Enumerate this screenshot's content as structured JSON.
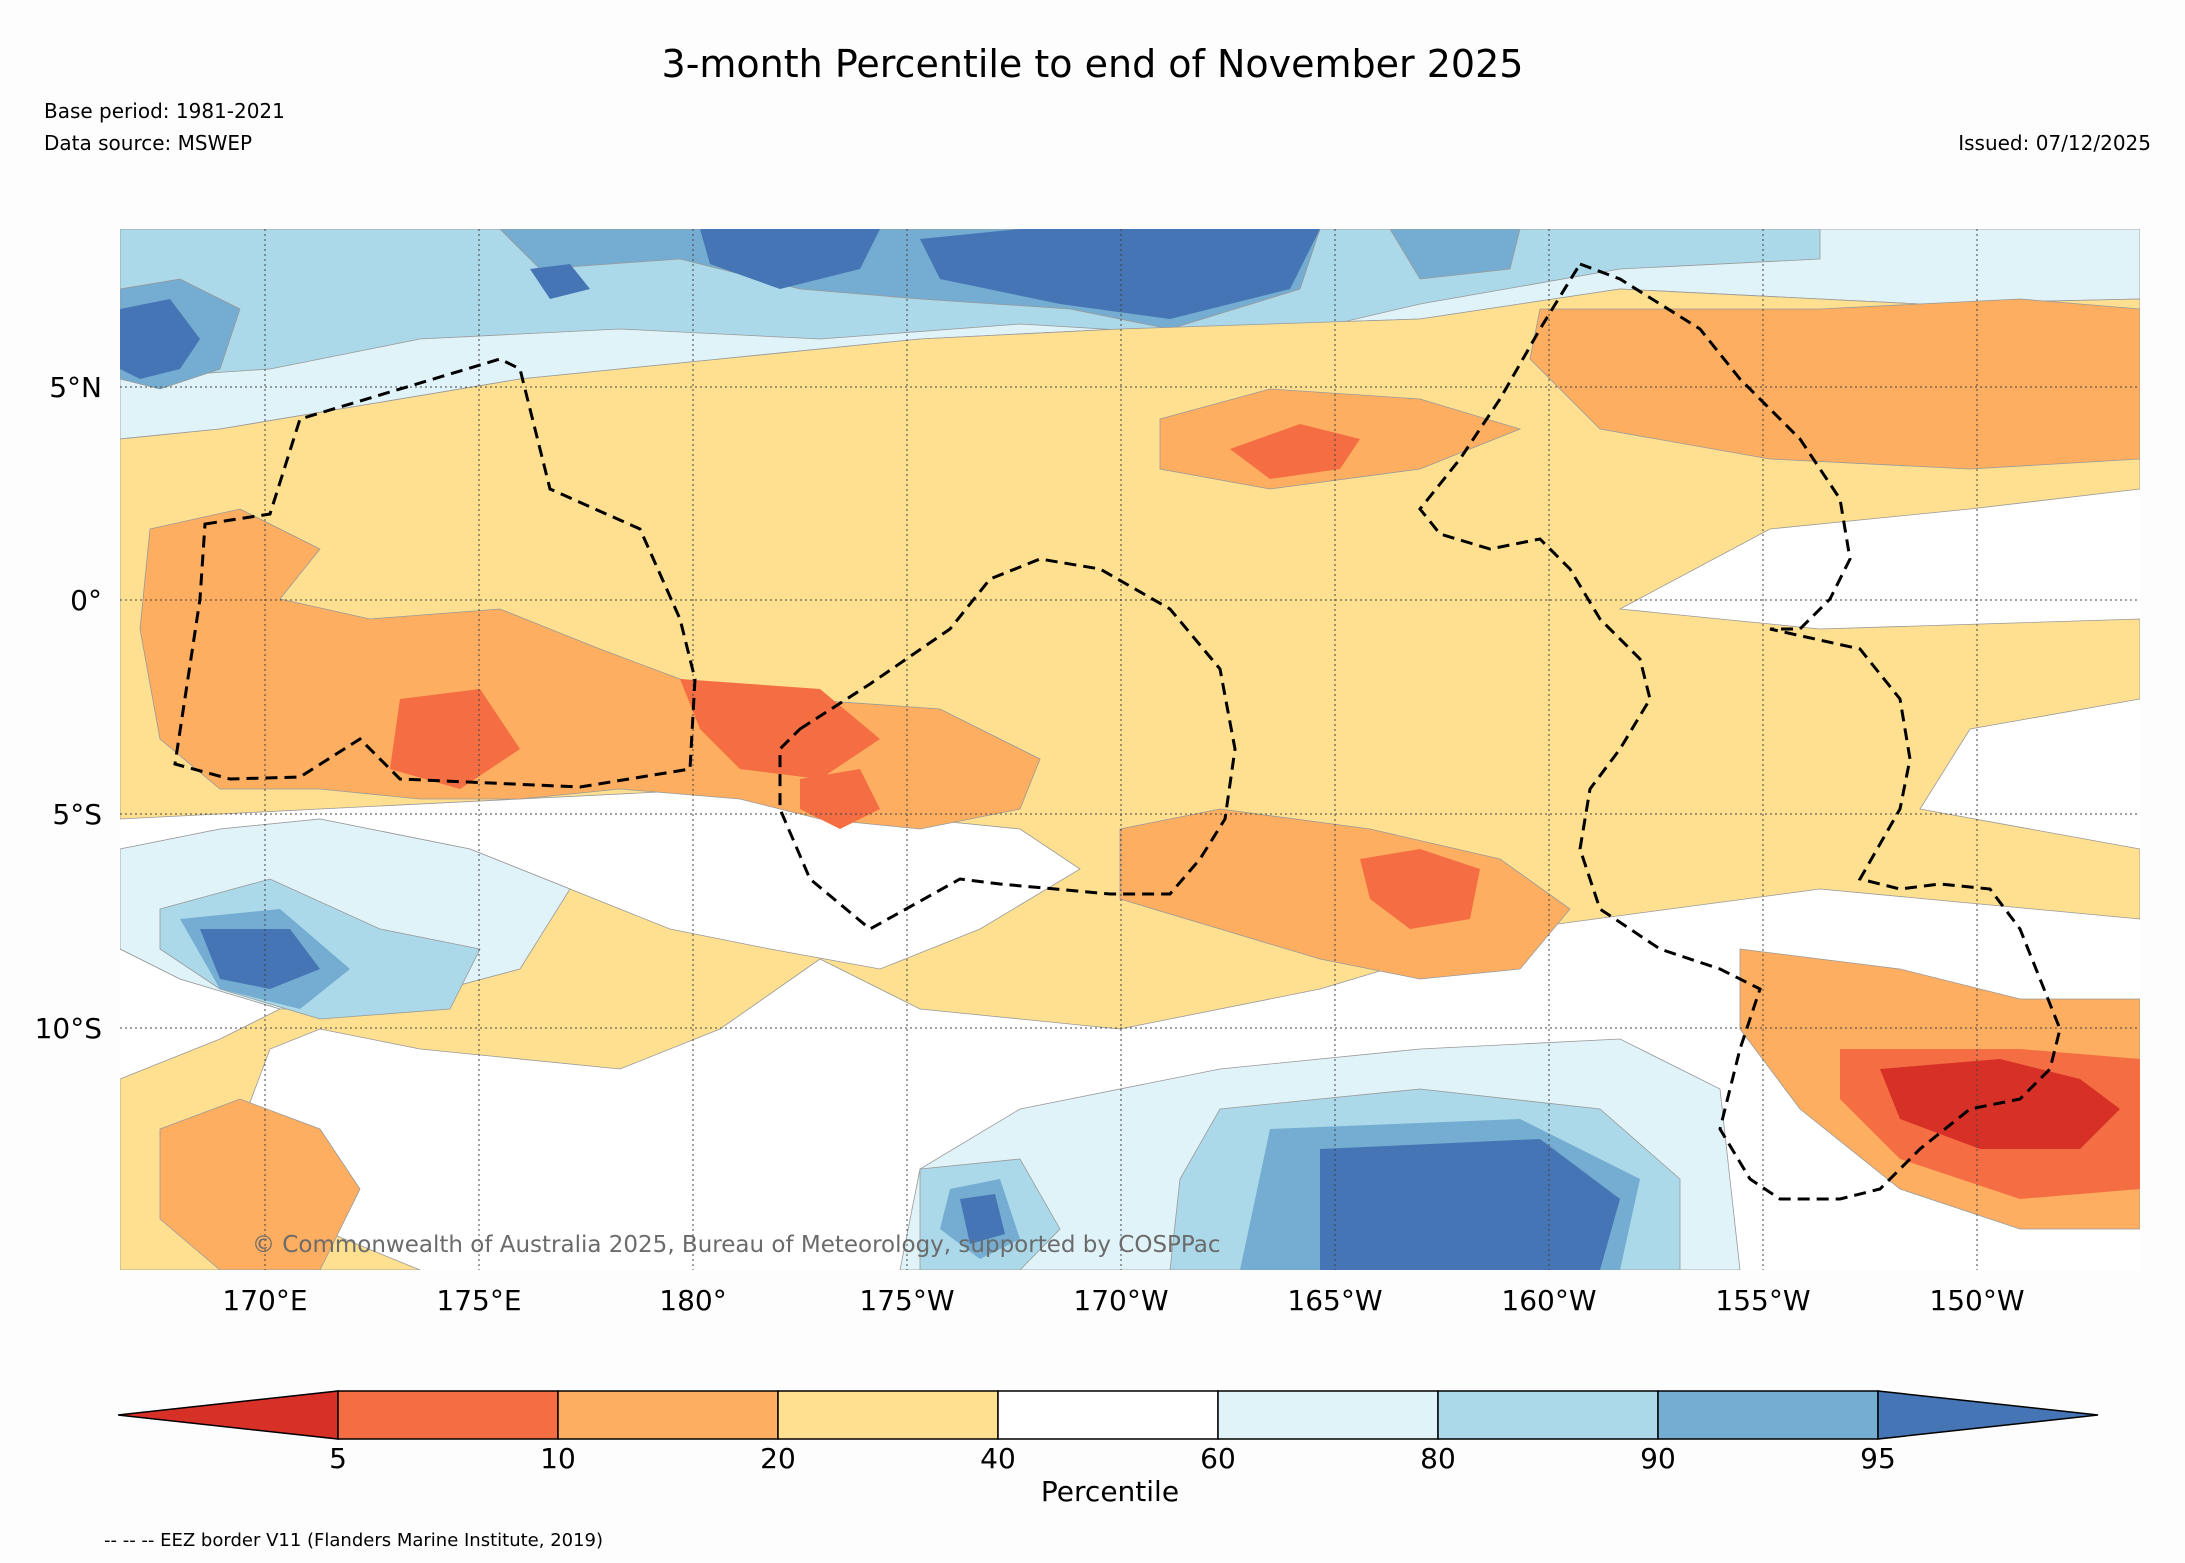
{
  "title": "3-month Percentile to end of November 2025",
  "base_period": "Base period: 1981-2021",
  "data_source": "Data source: MSWEP",
  "issued": "Issued: 07/12/2025",
  "copyright": "© Commonwealth of Australia 2025, Bureau of Meteorology, supported by COSPPac",
  "lat_labels": [
    "5°N",
    "0°",
    "5°S",
    "10°S"
  ],
  "lon_labels": [
    "170°E",
    "175°E",
    "180°",
    "175°W",
    "170°W",
    "165°W",
    "160°W",
    "155°W",
    "150°W"
  ],
  "colorbar": {
    "label": "Percentile",
    "ticks": [
      "5",
      "10",
      "20",
      "40",
      "60",
      "80",
      "90",
      "95"
    ],
    "colors": [
      "#d73027",
      "#f46d43",
      "#fdae61",
      "#fee090",
      "#ffffff",
      "#e0f3f8",
      "#abd9e9",
      "#74add1",
      "#4575b4"
    ]
  },
  "footnote": "-- -- -- EEZ border V11 (Flanders Marine Institute, 2019)"
}
